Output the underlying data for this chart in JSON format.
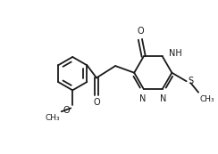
{
  "bg_color": "#ffffff",
  "line_color": "#1a1a1a",
  "lw": 1.3,
  "fs": 7.0,
  "xlim": [
    0.0,
    2.5
  ],
  "ylim": [
    0.0,
    1.6
  ]
}
